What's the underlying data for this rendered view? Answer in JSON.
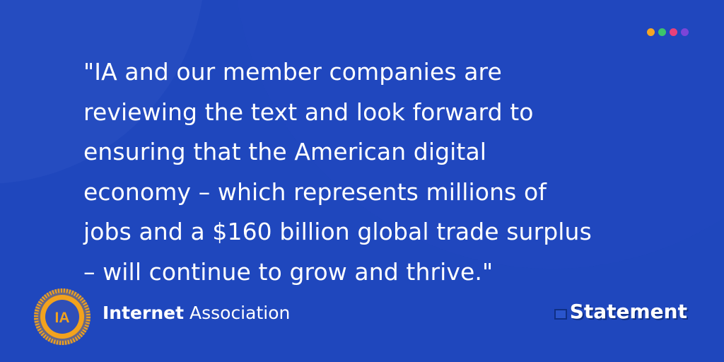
{
  "quote": {
    "lines": [
      "\"IA and our member companies are",
      "reviewing the text and look forward to",
      "ensuring that the American digital",
      "economy – which represents millions of",
      "jobs and a $160 billion global trade surplus",
      "– will continue to grow and thrive.\""
    ]
  },
  "brand": {
    "logo_text": "IA",
    "name_bold": "Internet",
    "name_regular": " Association"
  },
  "badge": {
    "label": "Statement"
  },
  "decor": {
    "dot_colors": [
      "#f5a623",
      "#3cc46a",
      "#e8407b",
      "#7b45d8"
    ],
    "background": "#1f47bd",
    "logo_ring": "#f2a21d"
  }
}
